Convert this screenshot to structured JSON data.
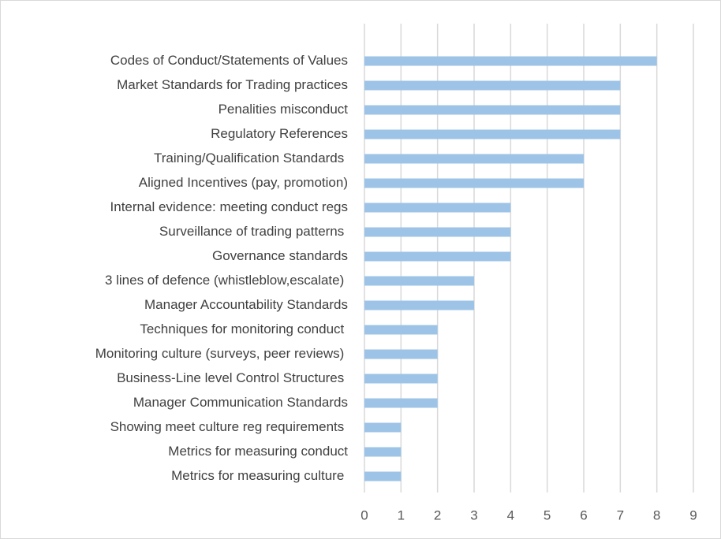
{
  "chart_data": {
    "type": "barh",
    "categories": [
      "Codes of Conduct/Statements of Values",
      "Market Standards for Trading practices",
      "Penalities misconduct",
      "Regulatory References",
      "Training/Qualification Standards ",
      "Aligned Incentives (pay, promotion)",
      "Internal evidence: meeting conduct regs",
      "Surveillance of trading patterns ",
      "Governance standards",
      "3 lines of defence (whistleblow,escalate) ",
      "Manager Accountability Standards",
      "Techniques for monitoring conduct ",
      "Monitoring culture (surveys, peer reviews) ",
      "Business-Line level Control Structures ",
      "Manager Communication Standards",
      "Showing meet culture reg requirements ",
      "Metrics for measuring conduct",
      "Metrics for measuring culture "
    ],
    "values": [
      8,
      7,
      7,
      7,
      6,
      6,
      4,
      4,
      4,
      3,
      3,
      2,
      2,
      2,
      2,
      1,
      1,
      1
    ],
    "color": "#9dc3e6",
    "xlim": [
      0,
      9
    ],
    "xticks": [
      0,
      1,
      2,
      3,
      4,
      5,
      6,
      7,
      8,
      9
    ],
    "grid": true
  }
}
